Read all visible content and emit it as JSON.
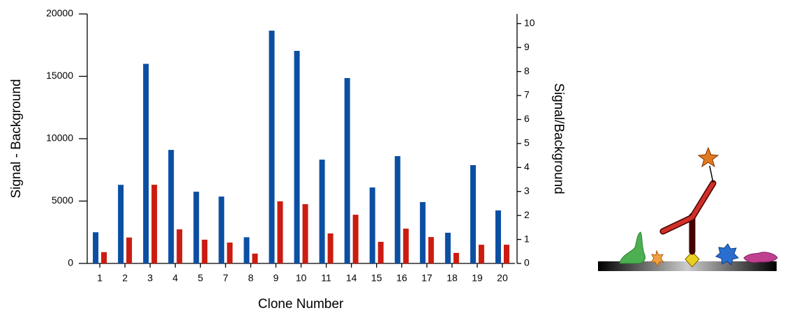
{
  "chart_data": {
    "type": "bar",
    "x_label": "Clone Number",
    "y_label": "Signal - Background",
    "y2_label": "Signal/Background",
    "categories": [
      "1",
      "2",
      "3",
      "4",
      "5",
      "7",
      "8",
      "9",
      "10",
      "11",
      "14",
      "15",
      "16",
      "17",
      "18",
      "19",
      "20"
    ],
    "series": [
      {
        "color": "#0b4fa3",
        "values": [
          2500,
          6300,
          16000,
          9100,
          5750,
          5360,
          2100,
          18660,
          17040,
          8320,
          14860,
          6090,
          8600,
          4920,
          2460,
          7880,
          4250
        ]
      },
      {
        "color": "#cc1b10",
        "axis": "y2",
        "values": [
          0.47,
          1.08,
          3.28,
          1.42,
          0.99,
          0.87,
          0.41,
          2.59,
          2.47,
          1.25,
          2.03,
          0.9,
          1.45,
          1.1,
          0.44,
          0.78,
          0.78
        ]
      }
    ],
    "ylim": [
      0,
      20000
    ],
    "yticks": [
      0,
      5000,
      10000,
      15000,
      20000
    ],
    "y2lim": [
      0,
      10.4
    ],
    "y2ticks": [
      0,
      1,
      2,
      3,
      4,
      5,
      6,
      7,
      8,
      9,
      10
    ]
  }
}
